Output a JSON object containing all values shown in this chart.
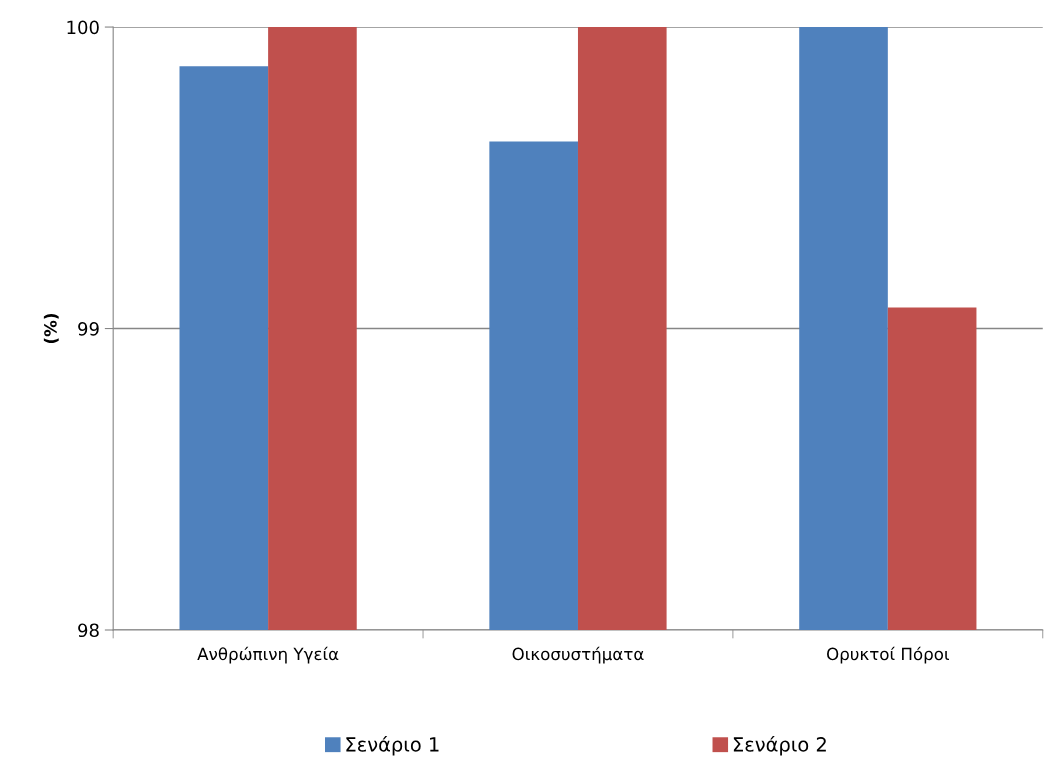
{
  "chart_data": {
    "type": "bar",
    "ylabel": "(%)",
    "categories": [
      "Ανθρώπινη Υγεία",
      "Οικοσυστήματα",
      "Ορυκτοί Πόροι"
    ],
    "series": [
      {
        "name": "Σενάριο 1",
        "color": "#4f81bd",
        "values": [
          99.87,
          99.62,
          100
        ]
      },
      {
        "name": "Σενάριο 2",
        "color": "#c0504d",
        "values": [
          100,
          100,
          99.07
        ]
      }
    ],
    "ylim": [
      98,
      100
    ],
    "yticks": [
      98,
      99,
      100
    ],
    "grid": "y",
    "legend": "bottom"
  }
}
